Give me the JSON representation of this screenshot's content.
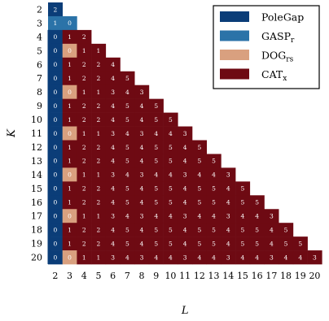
{
  "chart_data": {
    "type": "heatmap",
    "xlabel": "L",
    "ylabel": "K",
    "x": [
      2,
      3,
      4,
      5,
      6,
      7,
      8,
      9,
      10,
      11,
      12,
      13,
      14,
      15,
      16,
      17,
      18,
      19,
      20
    ],
    "y": [
      2,
      3,
      4,
      5,
      6,
      7,
      8,
      9,
      10,
      11,
      12,
      13,
      14,
      15,
      16,
      17,
      18,
      19,
      20
    ],
    "legend": {
      "placement": "top-right",
      "entries": [
        {
          "name": "PoleGap",
          "base": "PoleGap",
          "sub": "",
          "color": "#0b3d78"
        },
        {
          "name": "GASP_r",
          "base": "GASP",
          "sub": "r",
          "color": "#2b73a8"
        },
        {
          "name": "DOG_rs",
          "base": "DOG",
          "sub": "rs",
          "color": "#d9a07f"
        },
        {
          "name": "CAT_x",
          "base": "CAT",
          "sub": "x",
          "color": "#6e0a13"
        }
      ]
    },
    "cells": [
      {
        "K": 2,
        "values": [
          2
        ]
      },
      {
        "K": 3,
        "values": [
          1,
          0
        ]
      },
      {
        "K": 4,
        "values": [
          0,
          1,
          2
        ]
      },
      {
        "K": 5,
        "values": [
          0,
          0,
          1,
          1
        ]
      },
      {
        "K": 6,
        "values": [
          0,
          1,
          2,
          2,
          4
        ]
      },
      {
        "K": 7,
        "values": [
          0,
          1,
          2,
          2,
          4,
          5
        ]
      },
      {
        "K": 8,
        "values": [
          0,
          0,
          1,
          1,
          3,
          4,
          3
        ]
      },
      {
        "K": 9,
        "values": [
          0,
          1,
          2,
          2,
          4,
          5,
          4,
          5
        ]
      },
      {
        "K": 10,
        "values": [
          0,
          1,
          2,
          2,
          4,
          5,
          4,
          5,
          5
        ]
      },
      {
        "K": 11,
        "values": [
          0,
          0,
          1,
          1,
          3,
          4,
          3,
          4,
          4,
          3
        ]
      },
      {
        "K": 12,
        "values": [
          0,
          1,
          2,
          2,
          4,
          5,
          4,
          5,
          5,
          4,
          5
        ]
      },
      {
        "K": 13,
        "values": [
          0,
          1,
          2,
          2,
          4,
          5,
          4,
          5,
          5,
          4,
          5,
          5
        ]
      },
      {
        "K": 14,
        "values": [
          0,
          0,
          1,
          1,
          3,
          4,
          3,
          4,
          4,
          3,
          4,
          4,
          3
        ]
      },
      {
        "K": 15,
        "values": [
          0,
          1,
          2,
          2,
          4,
          5,
          4,
          5,
          5,
          4,
          5,
          5,
          4,
          5
        ]
      },
      {
        "K": 16,
        "values": [
          0,
          1,
          2,
          2,
          4,
          5,
          4,
          5,
          5,
          4,
          5,
          5,
          4,
          5,
          5
        ]
      },
      {
        "K": 17,
        "values": [
          0,
          0,
          1,
          1,
          3,
          4,
          3,
          4,
          4,
          3,
          4,
          4,
          3,
          4,
          4,
          3
        ]
      },
      {
        "K": 18,
        "values": [
          0,
          1,
          2,
          2,
          4,
          5,
          4,
          5,
          5,
          4,
          5,
          5,
          4,
          5,
          5,
          4,
          5
        ]
      },
      {
        "K": 19,
        "values": [
          0,
          1,
          2,
          2,
          4,
          5,
          4,
          5,
          5,
          4,
          5,
          5,
          4,
          5,
          5,
          4,
          5,
          5
        ]
      },
      {
        "K": 20,
        "values": [
          0,
          0,
          1,
          1,
          3,
          4,
          3,
          4,
          4,
          3,
          4,
          4,
          3,
          4,
          4,
          3,
          4,
          4,
          3
        ]
      }
    ],
    "winners": [
      {
        "K": 2,
        "method": [
          "PoleGap"
        ]
      },
      {
        "K": 3,
        "method": [
          "GASP_r",
          "GASP_r"
        ]
      },
      {
        "K": 4,
        "method": [
          "PoleGap",
          "CAT_x",
          "CAT_x"
        ]
      },
      {
        "K": 5,
        "method": [
          "PoleGap",
          "DOG_rs",
          "CAT_x",
          "CAT_x"
        ]
      },
      {
        "K": 6,
        "method": [
          "PoleGap",
          "CAT_x",
          "CAT_x",
          "CAT_x",
          "CAT_x"
        ]
      },
      {
        "K": 7,
        "method": [
          "PoleGap",
          "CAT_x",
          "CAT_x",
          "CAT_x",
          "CAT_x",
          "CAT_x"
        ]
      },
      {
        "K": 8,
        "method": [
          "PoleGap",
          "DOG_rs",
          "CAT_x",
          "CAT_x",
          "CAT_x",
          "CAT_x",
          "CAT_x"
        ]
      },
      {
        "K": 9,
        "method": [
          "PoleGap",
          "CAT_x",
          "CAT_x",
          "CAT_x",
          "CAT_x",
          "CAT_x",
          "CAT_x",
          "CAT_x"
        ]
      },
      {
        "K": 10,
        "method": [
          "PoleGap",
          "CAT_x",
          "CAT_x",
          "CAT_x",
          "CAT_x",
          "CAT_x",
          "CAT_x",
          "CAT_x",
          "CAT_x"
        ]
      },
      {
        "K": 11,
        "method": [
          "PoleGap",
          "DOG_rs",
          "CAT_x",
          "CAT_x",
          "CAT_x",
          "CAT_x",
          "CAT_x",
          "CAT_x",
          "CAT_x",
          "CAT_x"
        ]
      },
      {
        "K": 12,
        "method": [
          "PoleGap",
          "CAT_x",
          "CAT_x",
          "CAT_x",
          "CAT_x",
          "CAT_x",
          "CAT_x",
          "CAT_x",
          "CAT_x",
          "CAT_x",
          "CAT_x"
        ]
      },
      {
        "K": 13,
        "method": [
          "PoleGap",
          "CAT_x",
          "CAT_x",
          "CAT_x",
          "CAT_x",
          "CAT_x",
          "CAT_x",
          "CAT_x",
          "CAT_x",
          "CAT_x",
          "CAT_x",
          "CAT_x"
        ]
      },
      {
        "K": 14,
        "method": [
          "PoleGap",
          "DOG_rs",
          "CAT_x",
          "CAT_x",
          "CAT_x",
          "CAT_x",
          "CAT_x",
          "CAT_x",
          "CAT_x",
          "CAT_x",
          "CAT_x",
          "CAT_x",
          "CAT_x"
        ]
      },
      {
        "K": 15,
        "method": [
          "PoleGap",
          "CAT_x",
          "CAT_x",
          "CAT_x",
          "CAT_x",
          "CAT_x",
          "CAT_x",
          "CAT_x",
          "CAT_x",
          "CAT_x",
          "CAT_x",
          "CAT_x",
          "CAT_x",
          "CAT_x"
        ]
      },
      {
        "K": 16,
        "method": [
          "PoleGap",
          "CAT_x",
          "CAT_x",
          "CAT_x",
          "CAT_x",
          "CAT_x",
          "CAT_x",
          "CAT_x",
          "CAT_x",
          "CAT_x",
          "CAT_x",
          "CAT_x",
          "CAT_x",
          "CAT_x",
          "CAT_x"
        ]
      },
      {
        "K": 17,
        "method": [
          "PoleGap",
          "DOG_rs",
          "CAT_x",
          "CAT_x",
          "CAT_x",
          "CAT_x",
          "CAT_x",
          "CAT_x",
          "CAT_x",
          "CAT_x",
          "CAT_x",
          "CAT_x",
          "CAT_x",
          "CAT_x",
          "CAT_x",
          "CAT_x"
        ]
      },
      {
        "K": 18,
        "method": [
          "PoleGap",
          "CAT_x",
          "CAT_x",
          "CAT_x",
          "CAT_x",
          "CAT_x",
          "CAT_x",
          "CAT_x",
          "CAT_x",
          "CAT_x",
          "CAT_x",
          "CAT_x",
          "CAT_x",
          "CAT_x",
          "CAT_x",
          "CAT_x",
          "CAT_x"
        ]
      },
      {
        "K": 19,
        "method": [
          "PoleGap",
          "CAT_x",
          "CAT_x",
          "CAT_x",
          "CAT_x",
          "CAT_x",
          "CAT_x",
          "CAT_x",
          "CAT_x",
          "CAT_x",
          "CAT_x",
          "CAT_x",
          "CAT_x",
          "CAT_x",
          "CAT_x",
          "CAT_x",
          "CAT_x",
          "CAT_x"
        ]
      },
      {
        "K": 20,
        "method": [
          "PoleGap",
          "DOG_rs",
          "CAT_x",
          "CAT_x",
          "CAT_x",
          "CAT_x",
          "CAT_x",
          "CAT_x",
          "CAT_x",
          "CAT_x",
          "CAT_x",
          "CAT_x",
          "CAT_x",
          "CAT_x",
          "CAT_x",
          "CAT_x",
          "CAT_x",
          "CAT_x",
          "CAT_x"
        ]
      }
    ],
    "colors": {
      "PoleGap": "#0b3d78",
      "GASP_r": "#2b73a8",
      "DOG_rs": "#d9a07f",
      "CAT_x": "#6e0a13"
    },
    "grid": false
  }
}
